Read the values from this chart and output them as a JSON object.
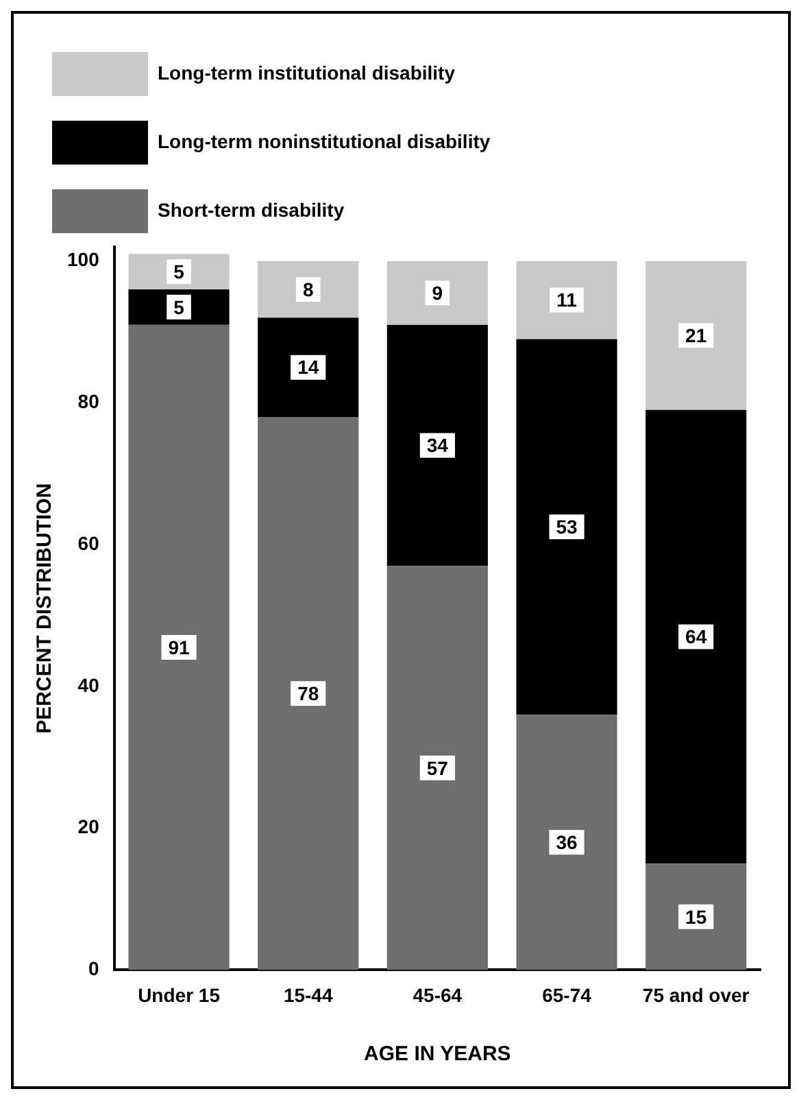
{
  "chart_data": {
    "type": "bar",
    "stacked": true,
    "xlabel": "AGE IN YEARS",
    "ylabel": "PERCENT DISTRIBUTION",
    "categories": [
      "Under 15",
      "15-44",
      "45-64",
      "65-74",
      "75 and over"
    ],
    "series": [
      {
        "name": "Short-term disability",
        "color": "#6e6e6e",
        "values": [
          91,
          78,
          57,
          36,
          15
        ]
      },
      {
        "name": "Long-term noninstitutional disability",
        "color": "#000000",
        "values": [
          5,
          14,
          34,
          53,
          64
        ]
      },
      {
        "name": "Long-term institutional disability",
        "color": "#c8c8c8",
        "values": [
          5,
          8,
          9,
          11,
          21
        ]
      }
    ],
    "ylim": [
      0,
      102
    ],
    "yticks": [
      0,
      20,
      40,
      60,
      80,
      100
    ],
    "grid": false,
    "legend": "top",
    "data_labels": true
  }
}
